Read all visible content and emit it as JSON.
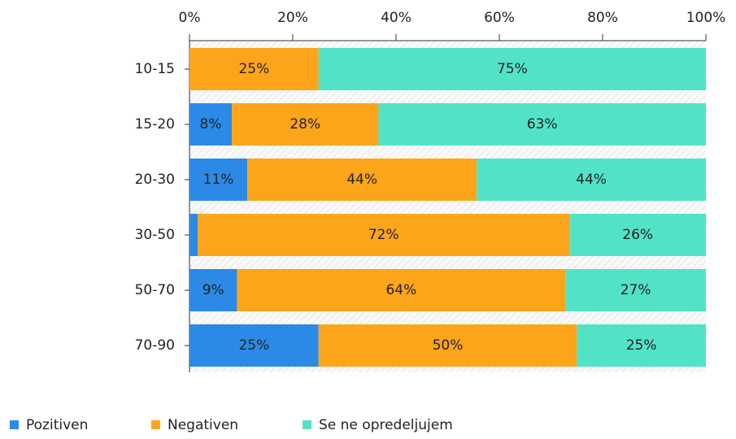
{
  "chart_data": {
    "type": "stacked-bar",
    "orientation": "horizontal",
    "categories": [
      "10-15",
      "15-20",
      "20-30",
      "30-50",
      "50-70",
      "70-90"
    ],
    "series": [
      {
        "name": "Pozitiven",
        "color": "#2b8ae6",
        "values": [
          0,
          8.2,
          11.2,
          1.6,
          9.2,
          25
        ],
        "value_labels": [
          null,
          "8%",
          "11%",
          null,
          "9%",
          "25%"
        ]
      },
      {
        "name": "Negativen",
        "color": "#fca51b",
        "values": [
          25,
          28.4,
          44.4,
          72,
          63.6,
          50
        ],
        "value_labels": [
          "25%",
          "28%",
          "44%",
          "72%",
          "64%",
          "50%"
        ]
      },
      {
        "name": "Se ne opredeljujem",
        "color": "#52e3c6",
        "values": [
          75,
          63.4,
          44.4,
          26.4,
          27.2,
          25
        ],
        "value_labels": [
          "75%",
          "63%",
          "44%",
          "26%",
          "27%",
          "25%"
        ]
      }
    ],
    "xlim": [
      0,
      100
    ],
    "xticks": [
      {
        "value": 0,
        "label": "0%"
      },
      {
        "value": 20,
        "label": "20%"
      },
      {
        "value": 40,
        "label": "40%"
      },
      {
        "value": 60,
        "label": "60%"
      },
      {
        "value": 80,
        "label": "80%"
      },
      {
        "value": 100,
        "label": "100%"
      }
    ],
    "legend": "bottom-left"
  }
}
